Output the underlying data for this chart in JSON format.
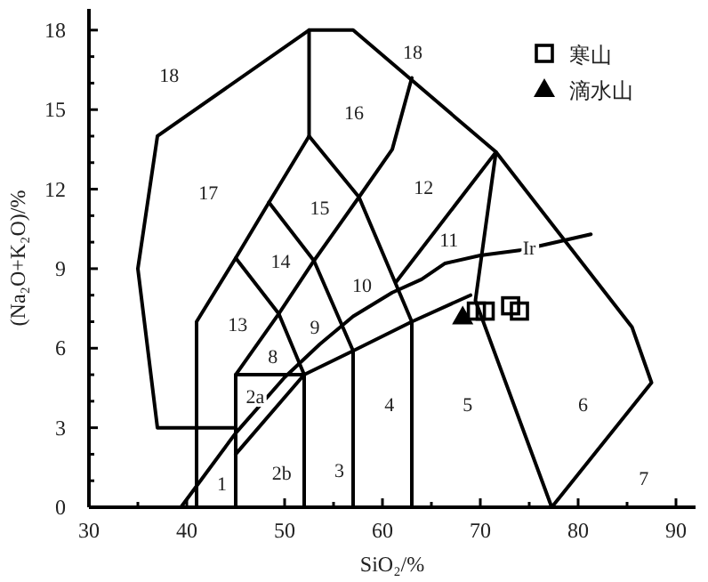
{
  "chart_data": {
    "type": "line",
    "xlabel": "SiO₂/%",
    "ylabel": "(Na₂O+K₂O)/%",
    "xlim": [
      30,
      92
    ],
    "ylim": [
      0,
      18.8
    ],
    "xticks": [
      30,
      {
        "value": 35,
        "label": null
      },
      40,
      {
        "value": 45,
        "label": null
      },
      50,
      {
        "value": 55,
        "label": null
      },
      60,
      {
        "value": 65,
        "label": null
      },
      70,
      {
        "value": 75,
        "label": null
      },
      80,
      {
        "value": 85,
        "label": null
      },
      90
    ],
    "yticks": [
      0,
      {
        "value": 1,
        "label": null
      },
      {
        "value": 2,
        "label": null
      },
      3,
      {
        "value": 4,
        "label": null
      },
      {
        "value": 5,
        "label": null
      },
      6,
      {
        "value": 7,
        "label": null
      },
      {
        "value": 8,
        "label": null
      },
      9,
      {
        "value": 10,
        "label": null
      },
      {
        "value": 11,
        "label": null
      },
      12,
      {
        "value": 13,
        "label": null
      },
      {
        "value": 14,
        "label": null
      },
      15,
      {
        "value": 16,
        "label": null
      },
      {
        "value": 17,
        "label": null
      },
      18
    ],
    "grid": false,
    "legend": "top right",
    "line_style": "solid",
    "series": [
      {
        "type": "line",
        "color": "#000000",
        "x": [
          45,
          37,
          35,
          37,
          52.5,
          57,
          71.6,
          85.5,
          87.5,
          77.3
        ],
        "values": [
          3,
          3,
          9,
          14,
          18,
          18,
          13.4,
          6.8,
          4.7,
          0
        ]
      },
      {
        "type": "line",
        "color": "#000000",
        "x": [
          41,
          41,
          45,
          48.4,
          52.5,
          52.5
        ],
        "values": [
          0,
          7,
          9.4,
          11.5,
          14,
          18
        ]
      },
      {
        "type": "line",
        "color": "#000000",
        "x": [
          45,
          45,
          49.4,
          53,
          57.6,
          61,
          63
        ],
        "values": [
          0,
          5,
          7.3,
          9.3,
          11.7,
          13.5,
          16.2
        ]
      },
      {
        "type": "line",
        "color": "#000000",
        "x": [
          45,
          52
        ],
        "values": [
          5,
          5
        ]
      },
      {
        "type": "line",
        "color": "#000000",
        "x": [
          45,
          49.4,
          52,
          52
        ],
        "values": [
          9.4,
          7.3,
          5,
          0
        ]
      },
      {
        "type": "line",
        "color": "#000000",
        "x": [
          48.4,
          53,
          57,
          57
        ],
        "values": [
          11.5,
          9.3,
          5.9,
          0
        ]
      },
      {
        "type": "line",
        "color": "#000000",
        "x": [
          52.5,
          57.6,
          63,
          63
        ],
        "values": [
          14,
          11.7,
          7,
          0
        ]
      },
      {
        "type": "line",
        "color": "#000000",
        "x": [
          45,
          52,
          57,
          63,
          69
        ],
        "values": [
          2,
          5,
          5.9,
          7,
          8
        ]
      },
      {
        "type": "line",
        "color": "#000000",
        "x": [
          61.4,
          71.6,
          69.5,
          77.3
        ],
        "values": [
          8.5,
          13.4,
          7.8,
          0
        ]
      },
      {
        "type": "line",
        "color": "#000000",
        "x": [
          39.4,
          45,
          50,
          53.6,
          57,
          61,
          64,
          66.4,
          70,
          74.2,
          81.3
        ],
        "values": [
          0,
          2.8,
          4.9,
          6.15,
          7.2,
          8.1,
          8.6,
          9.2,
          9.5,
          9.7,
          10.3
        ]
      },
      {
        "type": "scatter",
        "name": "寒山",
        "marker": "square",
        "color": "#000000",
        "x": [
          69.6,
          70.5,
          73.1,
          74
        ],
        "values": [
          7.4,
          7.4,
          7.6,
          7.4
        ]
      },
      {
        "type": "scatter",
        "name": "滴水山",
        "marker": "triangle",
        "color": "#000000",
        "x": [
          68.2
        ],
        "values": [
          7.2
        ]
      }
    ],
    "annotations": [
      "1",
      "2a",
      "2b",
      "3",
      "4",
      "5",
      "6",
      "7",
      "8",
      "9",
      "10",
      "11",
      "12",
      "13",
      "14",
      "15",
      "16",
      "17",
      "18",
      "18",
      "Ir"
    ]
  }
}
